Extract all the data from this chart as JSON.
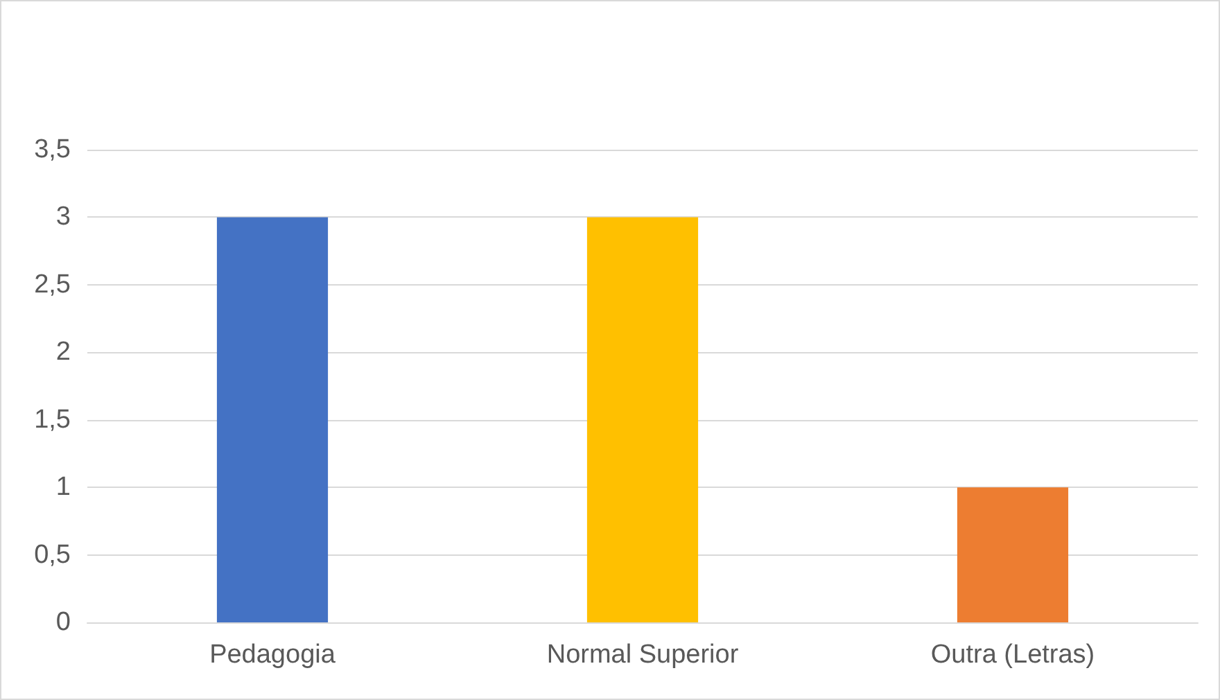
{
  "chart_data": {
    "type": "bar",
    "categories": [
      "Pedagogia",
      "Normal Superior",
      "Outra (Letras)"
    ],
    "values": [
      3,
      3,
      1
    ],
    "colors": [
      "#4472c4",
      "#ffc000",
      "#ed7d31"
    ],
    "ylim": [
      0,
      3.5
    ],
    "yticks": [
      0,
      {
        "value": 0.5,
        "label": "0,5"
      },
      1,
      {
        "value": 1.5,
        "label": "1,5"
      },
      2,
      {
        "value": 2.5,
        "label": "2,5"
      },
      3,
      {
        "value": 3.5,
        "label": "3,5"
      }
    ],
    "grid": "y"
  }
}
